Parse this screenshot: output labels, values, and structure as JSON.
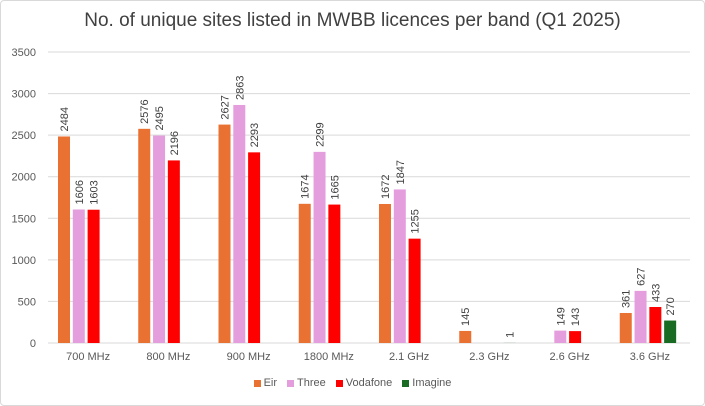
{
  "chart_data": {
    "type": "bar",
    "title": "No. of unique sites listed in MWBB licences per band (Q1 2025)",
    "xlabel": "",
    "ylabel": "",
    "ylim": [
      0,
      3500
    ],
    "yticks": [
      0,
      500,
      1000,
      1500,
      2000,
      2500,
      3000,
      3500
    ],
    "grid": true,
    "legend_position": "bottom",
    "categories": [
      "700 MHz",
      "800 MHz",
      "900 MHz",
      "1800 MHz",
      "2.1 GHz",
      "2.3 GHz",
      "2.6 GHz",
      "3.6 GHz"
    ],
    "series": [
      {
        "name": "Eir",
        "color": "#e97132",
        "values": [
          2484,
          2576,
          2627,
          1674,
          1672,
          145,
          null,
          361
        ]
      },
      {
        "name": "Three",
        "color": "#e59edd",
        "values": [
          1606,
          2495,
          2863,
          2299,
          1847,
          null,
          149,
          627
        ]
      },
      {
        "name": "Vodafone",
        "color": "#ff0000",
        "values": [
          1603,
          2196,
          2293,
          1665,
          1255,
          null,
          143,
          433
        ]
      },
      {
        "name": "Imagine",
        "color": "#196b24",
        "values": [
          null,
          null,
          null,
          null,
          null,
          1,
          null,
          270
        ]
      }
    ]
  }
}
